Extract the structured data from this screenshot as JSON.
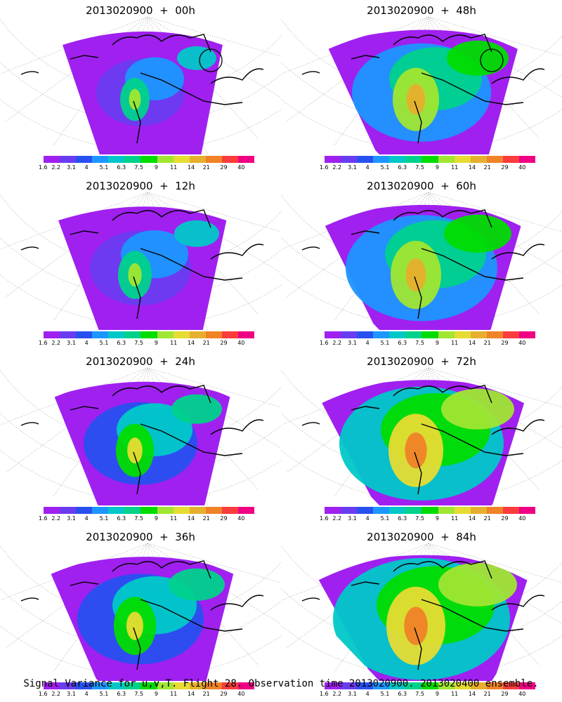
{
  "panels": [
    {
      "title": "2013020900  +  00h",
      "level": 0.1,
      "hot": [
        0.72,
        0.8
      ],
      "circle": true
    },
    {
      "title": "2013020900  +  48h",
      "level": 0.5,
      "hot": [
        0.75,
        0.55
      ],
      "circle": true
    },
    {
      "title": "2013020900  +  12h",
      "level": 0.2,
      "hot": [
        0.7,
        0.6
      ],
      "circle": false
    },
    {
      "title": "2013020900  +  60h",
      "level": 0.6,
      "hot": [
        0.62,
        0.55
      ],
      "circle": false
    },
    {
      "title": "2013020900  +  24h",
      "level": 0.3,
      "hot": [
        0.7,
        0.6
      ],
      "circle": false
    },
    {
      "title": "2013020900  +  72h",
      "level": 0.7,
      "hot": [
        0.6,
        0.5
      ],
      "circle": false
    },
    {
      "title": "2013020900  +  36h",
      "level": 0.4,
      "hot": [
        0.68,
        0.55
      ],
      "circle": false
    },
    {
      "title": "2013020900  +  84h",
      "level": 0.8,
      "hot": [
        0.55,
        0.45
      ],
      "circle": false
    }
  ],
  "colorbar": {
    "labels": [
      "1.6",
      "2.2",
      "3.1",
      "4",
      "5.1",
      "6.3",
      "7.5",
      "9",
      "11",
      "14",
      "21",
      "29",
      "40"
    ],
    "colors": [
      "#a020f0",
      "#6a3cf0",
      "#2850f0",
      "#1e96ff",
      "#00c8c8",
      "#00d28c",
      "#00dc00",
      "#a0e632",
      "#e6dc32",
      "#e6af2d",
      "#f08228",
      "#fa3c3c",
      "#f00082"
    ]
  },
  "caption": "Signal Variance for u,v,T. Flight 28. Observation time 2013020900. 2013020400 ensemble."
}
